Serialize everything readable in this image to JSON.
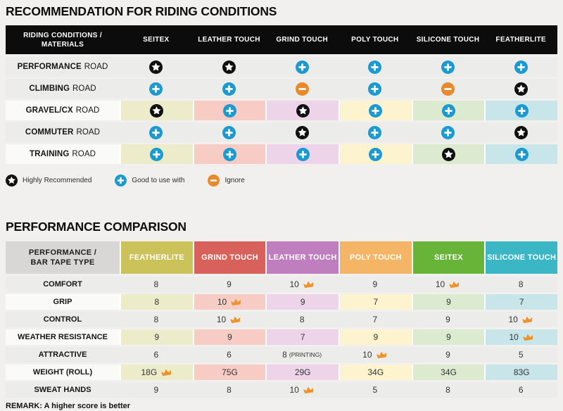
{
  "colors": {
    "page_bg": "#f1f0ee",
    "header_bar": "#0c0c0c",
    "row_gray": "#ececea",
    "row_label_light": "#fafaf8",
    "icon_star": "#101010",
    "icon_plus": "#1b9ad2",
    "icon_minus": "#e8892b",
    "crown": "#f0922b",
    "t2_corner_bg": "#d8d7d5",
    "column_tints": [
      "#edecca",
      "#f6ccc4",
      "#edd4e9",
      "#fdf3cf",
      "#dcebd0",
      "#c8e5e9"
    ],
    "t2_header_colors": [
      "#cbc259",
      "#d8625b",
      "#bf7fbe",
      "#f4b666",
      "#68b438",
      "#3bb6c4"
    ]
  },
  "chart_data": [
    {
      "type": "table",
      "title": "RECOMMENDATION FOR RIDING CONDITIONS",
      "corner_header": "RIDING CONDITIONS / MATERIALS",
      "columns": [
        "SEITEX",
        "LEATHER TOUCH",
        "GRIND TOUCH",
        "POLY TOUCH",
        "SILICONE TOUCH",
        "FEATHERLITE"
      ],
      "legend": [
        {
          "icon": "star",
          "label": "Highly Recommended"
        },
        {
          "icon": "plus",
          "label": "Good to use with"
        },
        {
          "icon": "minus",
          "label": "Ignore"
        }
      ],
      "rows": [
        {
          "label": "PERFORMANCE",
          "label_suffix": "ROAD",
          "tinted": false,
          "cells": [
            "star",
            "star",
            "plus",
            "plus",
            "plus",
            "plus"
          ]
        },
        {
          "label": "CLIMBING",
          "label_suffix": "ROAD",
          "tinted": false,
          "cells": [
            "plus",
            "plus",
            "minus",
            "plus",
            "minus",
            "star"
          ]
        },
        {
          "label": "GRAVEL/CX",
          "label_suffix": "ROAD",
          "tinted": true,
          "cells": [
            "star",
            "plus",
            "star",
            "plus",
            "plus",
            "plus"
          ]
        },
        {
          "label": "COMMUTER",
          "label_suffix": "ROAD",
          "tinted": false,
          "cells": [
            "plus",
            "plus",
            "star",
            "plus",
            "plus",
            "star"
          ]
        },
        {
          "label": "TRAINING",
          "label_suffix": "ROAD",
          "tinted": true,
          "cells": [
            "plus",
            "plus",
            "plus",
            "plus",
            "star",
            "plus"
          ]
        }
      ]
    },
    {
      "type": "table",
      "title": "PERFORMANCE COMPARISON",
      "corner_header": "PERFORMANCE / BAR TAPE TYPE",
      "columns": [
        "FEATHERLITE",
        "GRIND TOUCH",
        "LEATHER TOUCH",
        "POLY TOUCH",
        "SEITEX",
        "SILICONE TOUCH"
      ],
      "rows": [
        {
          "label": "COMFORT",
          "tinted": false,
          "cells": [
            {
              "value": "8"
            },
            {
              "value": "9"
            },
            {
              "value": "10",
              "crown": true
            },
            {
              "value": "9"
            },
            {
              "value": "10",
              "crown": true
            },
            {
              "value": "8"
            }
          ]
        },
        {
          "label": "GRIP",
          "tinted": true,
          "cells": [
            {
              "value": "8"
            },
            {
              "value": "10",
              "crown": true
            },
            {
              "value": "9"
            },
            {
              "value": "7"
            },
            {
              "value": "9"
            },
            {
              "value": "7"
            }
          ]
        },
        {
          "label": "CONTROL",
          "tinted": false,
          "cells": [
            {
              "value": "8"
            },
            {
              "value": "10",
              "crown": true
            },
            {
              "value": "8"
            },
            {
              "value": "7"
            },
            {
              "value": "9"
            },
            {
              "value": "10",
              "crown": true
            }
          ]
        },
        {
          "label": "WEATHER RESISTANCE",
          "tinted": true,
          "cells": [
            {
              "value": "9"
            },
            {
              "value": "9"
            },
            {
              "value": "7"
            },
            {
              "value": "9"
            },
            {
              "value": "9"
            },
            {
              "value": "10",
              "crown": true
            }
          ]
        },
        {
          "label": "ATTRACTIVE",
          "tinted": false,
          "cells": [
            {
              "value": "6"
            },
            {
              "value": "6"
            },
            {
              "value": "8",
              "note": "(PRINTING)"
            },
            {
              "value": "10",
              "crown": true
            },
            {
              "value": "9"
            },
            {
              "value": "5"
            }
          ]
        },
        {
          "label": "WEIGHT (ROLL)",
          "tinted": true,
          "cells": [
            {
              "value": "18G",
              "crown": true
            },
            {
              "value": "75G"
            },
            {
              "value": "29G"
            },
            {
              "value": "34G"
            },
            {
              "value": "34G"
            },
            {
              "value": "83G"
            }
          ]
        },
        {
          "label": "SWEAT HANDS",
          "tinted": false,
          "cells": [
            {
              "value": "9"
            },
            {
              "value": "8"
            },
            {
              "value": "10",
              "crown": true
            },
            {
              "value": "5"
            },
            {
              "value": "8"
            },
            {
              "value": "6"
            }
          ]
        }
      ],
      "remark": "REMARK: A higher score is better"
    }
  ]
}
